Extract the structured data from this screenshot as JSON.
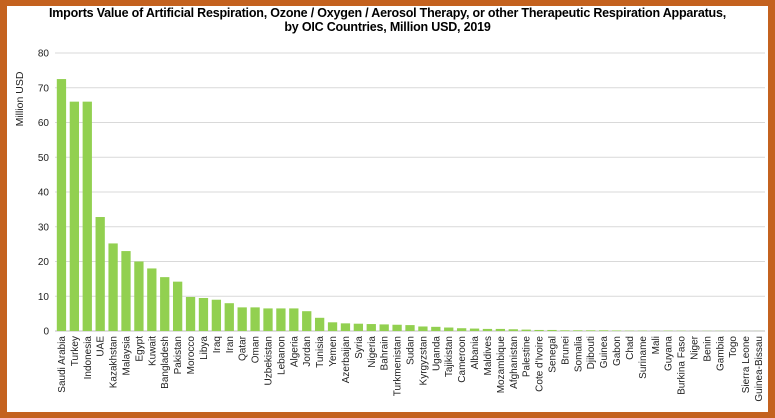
{
  "chart_data": {
    "type": "bar",
    "title": "Imports Value of Artificial Respiration, Ozone / Oxygen / Aerosol Therapy, or other Therapeutic Respiration Apparatus,",
    "subtitle": "by OIC Countries, Million USD, 2019",
    "xlabel": "",
    "ylabel": "Million USD",
    "ylim": [
      0,
      80
    ],
    "yticks": [
      0,
      10,
      20,
      30,
      40,
      50,
      60,
      70,
      80
    ],
    "grid": true,
    "legend": "none",
    "bar_color": "#92d050",
    "categories": [
      "Saudi Arabia",
      "Turkey",
      "Indonesia",
      "UAE",
      "Kazakhstan",
      "Malaysia",
      "Egypt",
      "Kuwait",
      "Bangladesh",
      "Pakistan",
      "Morocco",
      "Libya",
      "Iraq",
      "Iran",
      "Qatar",
      "Oman",
      "Uzbekistan",
      "Lebanon",
      "Algeria",
      "Jordan",
      "Tunisia",
      "Yemen",
      "Azerbaijan",
      "Syria",
      "Nigeria",
      "Bahrain",
      "Turkmenistan",
      "Sudan",
      "Kyrgyzstan",
      "Uganda",
      "Tajikistan",
      "Cameroon",
      "Albania",
      "Maldives",
      "Mozambique",
      "Afghanistan",
      "Palestine",
      "Cote d'Ivoire",
      "Senegal",
      "Brunei",
      "Somalia",
      "Djibouti",
      "Guinea",
      "Gabon",
      "Chad",
      "Suriname",
      "Mali",
      "Guyana",
      "Burkina Faso",
      "Niger",
      "Benin",
      "Gambia",
      "Togo",
      "Sierra Leone",
      "Guinea-Bissau"
    ],
    "values": [
      72.5,
      66,
      66,
      32.8,
      25.2,
      23,
      20,
      18,
      15.5,
      14.2,
      9.8,
      9.5,
      9,
      8,
      6.8,
      6.8,
      6.5,
      6.5,
      6.5,
      5.7,
      3.8,
      2.5,
      2.2,
      2.1,
      2,
      1.9,
      1.8,
      1.7,
      1.3,
      1.2,
      1,
      0.8,
      0.7,
      0.6,
      0.6,
      0.5,
      0.4,
      0.3,
      0.3,
      0.2,
      0.2,
      0.2,
      0.2,
      0.15,
      0.1,
      0.1,
      0.1,
      0.1,
      0.08,
      0.05,
      0.05,
      0.05,
      0.03,
      0.03,
      0.02
    ]
  }
}
